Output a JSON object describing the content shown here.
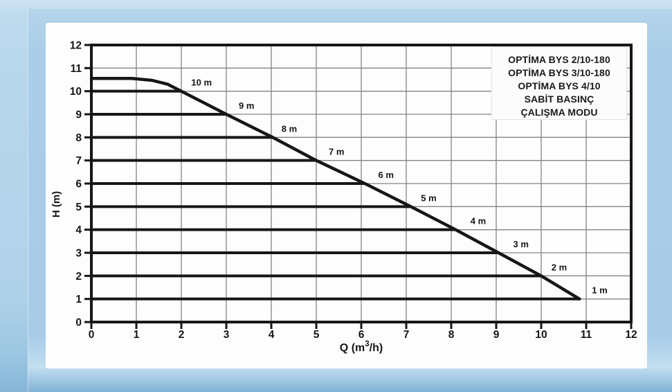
{
  "colors": {
    "background": "#a9cde8",
    "background_bottom": "#7fb1d4",
    "card": "#fdfdfd",
    "grid": "#848484",
    "ink": "#161616"
  },
  "chart": {
    "ylabel": "H (m)",
    "xlabel_parts": {
      "pre": "Q (m",
      "sup": "3",
      "post": "/h)"
    },
    "legend_lines": [
      "OPTİMA BYS 2/10-180",
      "OPTİMA BYS 3/10-180",
      "OPTİMA BYS 4/10",
      "SABİT BASINÇ",
      "ÇALIŞMA MODU"
    ]
  },
  "chart_data": {
    "type": "line",
    "title": "OPTİMA BYS 2/10-180, 3/10-180, 4/10 — SABİT BASINÇ ÇALIŞMA MODU",
    "xlabel": "Q (m³/h)",
    "ylabel": "H (m)",
    "xlim": [
      0,
      12
    ],
    "ylim": [
      0,
      12
    ],
    "x_ticks": [
      0,
      1,
      2,
      3,
      4,
      5,
      6,
      7,
      8,
      9,
      10,
      11,
      12
    ],
    "y_ticks": [
      0,
      1,
      2,
      3,
      4,
      5,
      6,
      7,
      8,
      9,
      10,
      11,
      12
    ],
    "grid": true,
    "legend_position": "top-right",
    "series": [
      {
        "name": "max-speed-curve",
        "points": [
          [
            0,
            10.55
          ],
          [
            0.9,
            10.55
          ],
          [
            1.35,
            10.47
          ],
          [
            1.7,
            10.3
          ],
          [
            2.0,
            10.0
          ],
          [
            2.4,
            9.6
          ],
          [
            3.0,
            9.0
          ],
          [
            4.0,
            8.03
          ],
          [
            5.0,
            7.0
          ],
          [
            6.08,
            6.0
          ],
          [
            7.1,
            5.0
          ],
          [
            8.1,
            4.0
          ],
          [
            9.05,
            3.0
          ],
          [
            10.0,
            2.0
          ],
          [
            10.85,
            1.0
          ]
        ]
      }
    ],
    "constant_pressure_lines": [
      {
        "h": 10,
        "q_end": 2.0,
        "label": "10 m",
        "label_q": 2.45
      },
      {
        "h": 9,
        "q_end": 3.0,
        "label": "9 m",
        "label_q": 3.45
      },
      {
        "h": 8,
        "q_end": 4.05,
        "label": "8 m",
        "label_q": 4.4
      },
      {
        "h": 7,
        "q_end": 5.0,
        "label": "7 m",
        "label_q": 5.45
      },
      {
        "h": 6,
        "q_end": 6.08,
        "label": "6 m",
        "label_q": 6.55
      },
      {
        "h": 5,
        "q_end": 7.1,
        "label": "5 m",
        "label_q": 7.5
      },
      {
        "h": 4,
        "q_end": 8.1,
        "label": "4 m",
        "label_q": 8.6
      },
      {
        "h": 3,
        "q_end": 9.05,
        "label": "3 m",
        "label_q": 9.55
      },
      {
        "h": 2,
        "q_end": 10.0,
        "label": "2 m",
        "label_q": 10.4
      },
      {
        "h": 1,
        "q_end": 10.85,
        "label": "1 m",
        "label_q": 11.3
      }
    ]
  }
}
